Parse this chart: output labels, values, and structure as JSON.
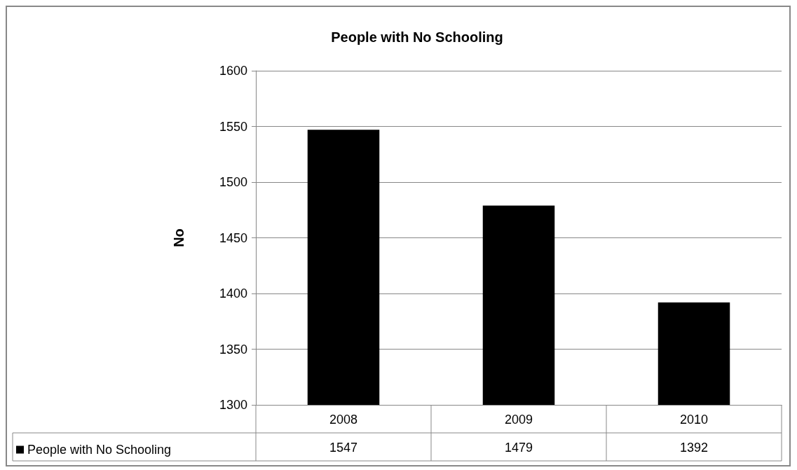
{
  "chart_data": {
    "type": "bar",
    "title": "People with No Schooling",
    "ylabel": "No",
    "categories": [
      "2008",
      "2009",
      "2010"
    ],
    "series": [
      {
        "name": "People with No Schooling",
        "color": "#000000",
        "values": [
          1547,
          1479,
          1392
        ]
      }
    ],
    "ylim": [
      1300,
      1600
    ],
    "yticks": [
      1300,
      1350,
      1400,
      1450,
      1500,
      1550,
      1600
    ],
    "grid": "y",
    "legend": "bottom",
    "data_labels": true
  }
}
